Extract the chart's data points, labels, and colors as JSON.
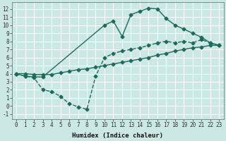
{
  "bg_color": "#cce8e4",
  "grid_color": "#b0d8d4",
  "line_color": "#1e6b5e",
  "line_width": 1.0,
  "marker": "D",
  "marker_size": 2.5,
  "xlabel": "Humidex (Indice chaleur)",
  "xlabel_fontsize": 6.5,
  "tick_fontsize": 5.5,
  "xlim": [
    -0.5,
    23.5
  ],
  "ylim": [
    -1.6,
    12.8
  ],
  "xticks": [
    0,
    1,
    2,
    3,
    4,
    5,
    6,
    7,
    8,
    9,
    10,
    11,
    12,
    13,
    14,
    15,
    16,
    17,
    18,
    19,
    20,
    21,
    22,
    23
  ],
  "yticks": [
    -1,
    0,
    1,
    2,
    3,
    4,
    5,
    6,
    7,
    8,
    9,
    10,
    11,
    12
  ],
  "line1_x": [
    0,
    1,
    2,
    3,
    10,
    11,
    12,
    13,
    14,
    15,
    16,
    17,
    18,
    19,
    20,
    21,
    22,
    23
  ],
  "line1_y": [
    4.0,
    3.7,
    3.6,
    3.6,
    10.0,
    10.5,
    8.6,
    11.3,
    11.7,
    12.1,
    12.0,
    10.8,
    10.0,
    9.5,
    9.0,
    8.5,
    7.8,
    7.5
  ],
  "line2_x": [
    0,
    1,
    2,
    3,
    4,
    5,
    6,
    7,
    8,
    9,
    10,
    11,
    12,
    13,
    14,
    15,
    16,
    17,
    18,
    19,
    20,
    21,
    22,
    23
  ],
  "line2_y": [
    4.0,
    4.0,
    3.9,
    3.9,
    3.9,
    4.1,
    4.3,
    4.5,
    4.6,
    4.8,
    5.0,
    5.2,
    5.4,
    5.6,
    5.8,
    6.0,
    6.3,
    6.5,
    6.8,
    7.0,
    7.2,
    7.3,
    7.5,
    7.5
  ],
  "line3_x": [
    0,
    1,
    2,
    3,
    4,
    5,
    6,
    7,
    8,
    9,
    10,
    11,
    12,
    13,
    14,
    15,
    16,
    17,
    18,
    19,
    20,
    21,
    22,
    23
  ],
  "line3_y": [
    4.0,
    3.7,
    3.5,
    2.0,
    1.8,
    1.2,
    0.3,
    -0.1,
    -0.4,
    3.7,
    6.0,
    6.5,
    6.8,
    7.0,
    7.2,
    7.5,
    7.8,
    8.0,
    7.8,
    8.0,
    7.8,
    8.2,
    7.8,
    7.5
  ]
}
